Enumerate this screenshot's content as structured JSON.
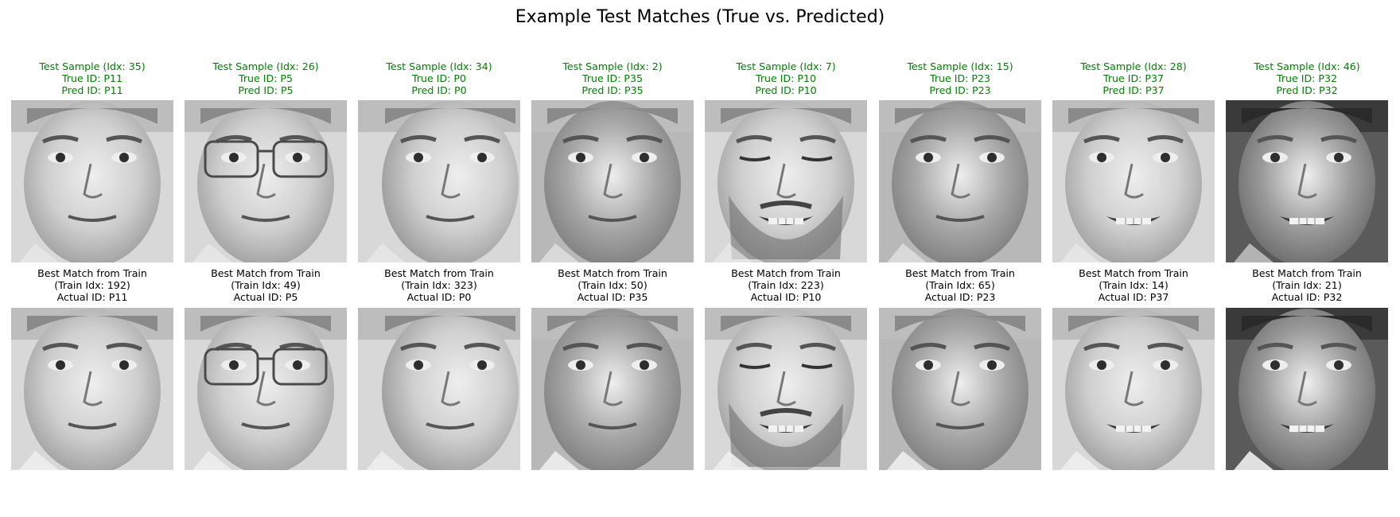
{
  "title": "Example Test Matches (True vs. Predicted)",
  "colors": {
    "correct": "#008000",
    "caption": "#000000"
  },
  "pairs": [
    {
      "test": {
        "line1": "Test Sample (Idx: 35)",
        "line2": "True ID: P11",
        "line3": "Pred ID: P11"
      },
      "train": {
        "line1": "Best Match from Train",
        "line2": "(Train Idx: 192)",
        "line3": "Actual ID: P11"
      },
      "face": {
        "tone": "light",
        "glasses": false,
        "beard": false,
        "eyes_closed": false,
        "turned": false,
        "teeth": false
      }
    },
    {
      "test": {
        "line1": "Test Sample (Idx: 26)",
        "line2": "True ID: P5",
        "line3": "Pred ID: P5"
      },
      "train": {
        "line1": "Best Match from Train",
        "line2": "(Train Idx: 49)",
        "line3": "Actual ID: P5"
      },
      "face": {
        "tone": "light",
        "glasses": true,
        "beard": false,
        "eyes_closed": false,
        "turned": false,
        "teeth": false
      }
    },
    {
      "test": {
        "line1": "Test Sample (Idx: 34)",
        "line2": "True ID: P0",
        "line3": "Pred ID: P0"
      },
      "train": {
        "line1": "Best Match from Train",
        "line2": "(Train Idx: 323)",
        "line3": "Actual ID: P0"
      },
      "face": {
        "tone": "light",
        "glasses": false,
        "beard": false,
        "eyes_closed": false,
        "turned": true,
        "teeth": false
      }
    },
    {
      "test": {
        "line1": "Test Sample (Idx: 2)",
        "line2": "True ID: P35",
        "line3": "Pred ID: P35"
      },
      "train": {
        "line1": "Best Match from Train",
        "line2": "(Train Idx: 50)",
        "line3": "Actual ID: P35"
      },
      "face": {
        "tone": "mid",
        "glasses": false,
        "beard": false,
        "eyes_closed": false,
        "turned": false,
        "teeth": false
      }
    },
    {
      "test": {
        "line1": "Test Sample (Idx: 7)",
        "line2": "True ID: P10",
        "line3": "Pred ID: P10"
      },
      "train": {
        "line1": "Best Match from Train",
        "line2": "(Train Idx: 223)",
        "line3": "Actual ID: P10"
      },
      "face": {
        "tone": "light",
        "glasses": false,
        "beard": true,
        "eyes_closed": true,
        "turned": false,
        "teeth": true
      }
    },
    {
      "test": {
        "line1": "Test Sample (Idx: 15)",
        "line2": "True ID: P23",
        "line3": "Pred ID: P23"
      },
      "train": {
        "line1": "Best Match from Train",
        "line2": "(Train Idx: 65)",
        "line3": "Actual ID: P23"
      },
      "face": {
        "tone": "mid",
        "glasses": false,
        "beard": false,
        "eyes_closed": false,
        "turned": false,
        "teeth": false
      }
    },
    {
      "test": {
        "line1": "Test Sample (Idx: 28)",
        "line2": "True ID: P37",
        "line3": "Pred ID: P37"
      },
      "train": {
        "line1": "Best Match from Train",
        "line2": "(Train Idx: 14)",
        "line3": "Actual ID: P37"
      },
      "face": {
        "tone": "light",
        "glasses": false,
        "beard": false,
        "eyes_closed": false,
        "turned": false,
        "teeth": true
      }
    },
    {
      "test": {
        "line1": "Test Sample (Idx: 46)",
        "line2": "True ID: P32",
        "line3": "Pred ID: P32"
      },
      "train": {
        "line1": "Best Match from Train",
        "line2": "(Train Idx: 21)",
        "line3": "Actual ID: P32"
      },
      "face": {
        "tone": "dark",
        "glasses": false,
        "beard": false,
        "eyes_closed": false,
        "turned": false,
        "teeth": true
      }
    }
  ]
}
